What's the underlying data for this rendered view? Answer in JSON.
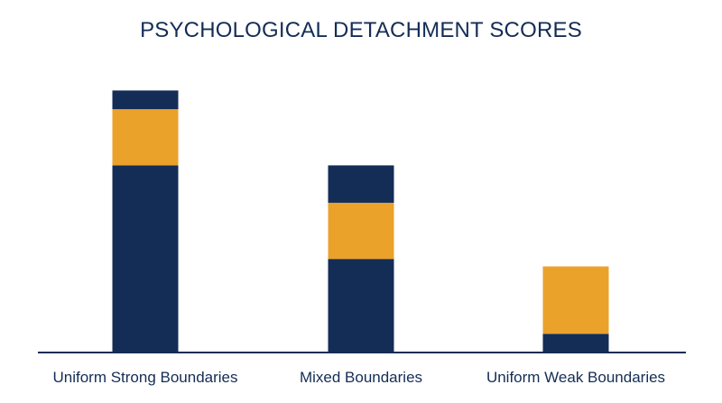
{
  "chart_data": {
    "type": "bar",
    "stacked": true,
    "title": "PSYCHOLOGICAL DETACHMENT SCORES",
    "xlabel": "",
    "ylabel": "",
    "grid": false,
    "legend": "none",
    "categories": [
      "Uniform Strong Boundaries",
      "Mixed Boundaries",
      "Uniform Weak Boundaries"
    ],
    "series": [
      {
        "color": "#142d56",
        "values": [
          5.0,
          2.5,
          0.5
        ]
      },
      {
        "color": "#eba22b",
        "values": [
          1.5,
          1.5,
          1.8
        ]
      },
      {
        "color": "#142d56",
        "values": [
          0.5,
          1.0,
          0.0
        ]
      }
    ],
    "ylim": [
      0,
      7.25
    ]
  },
  "colors": {
    "navy": "#142d56",
    "gold": "#eba22b",
    "axis": "#142d56",
    "text": "#142d56"
  }
}
